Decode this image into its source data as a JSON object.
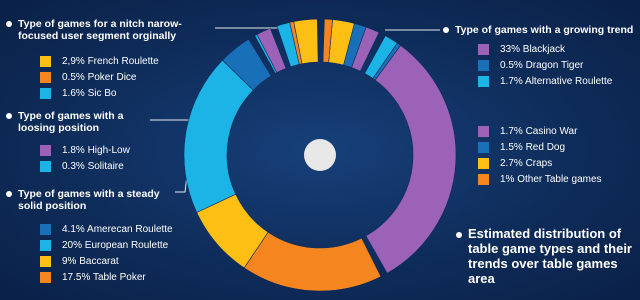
{
  "chart_data": {
    "type": "pie",
    "donut": true,
    "title": "Estimated distribution of table game types and their trends over table games area",
    "groups": [
      {
        "title": "Type of games for a nitch narow-focused user segment orginally",
        "categories": [
          "2,9% French Roulette",
          "0.5% Poker Dice",
          "1.6% Sic Bo"
        ],
        "values": [
          2.9,
          0.5,
          1.6
        ],
        "colors": [
          "#fdbf14",
          "#f5861f",
          "#1cb4e6"
        ]
      },
      {
        "title": "Type of games with a loosing position",
        "categories": [
          "1.8% High-Low",
          "0.3% Solitaire"
        ],
        "values": [
          1.8,
          0.3
        ],
        "colors": [
          "#9b62b8",
          "#1cb4e6"
        ]
      },
      {
        "title": "Type of games with a steady solid position",
        "categories": [
          "4.1% Amerecan Roulette",
          "20% European Roulette",
          "9% Baccarat",
          "17.5% Table Poker"
        ],
        "values": [
          4.1,
          20,
          9,
          17.5
        ],
        "colors": [
          "#1a70b8",
          "#1cb4e6",
          "#fdbf14",
          "#f5861f"
        ]
      },
      {
        "title": "Type of games with a growing trend",
        "categories": [
          "33% Blackjack",
          "0.5%  Dragon Tiger",
          "1.7% Alternative Roulette"
        ],
        "values": [
          33,
          0.5,
          1.7
        ],
        "colors": [
          "#9b62b8",
          "#1a70b8",
          "#1cb4e6"
        ]
      },
      {
        "categories": [
          "1.7% Casino War",
          "1.5% Red Dog",
          "2.7% Craps",
          "1% Other Table games"
        ],
        "values": [
          1.7,
          1.5,
          2.7,
          1
        ],
        "colors": [
          "#9b62b8",
          "#1a70b8",
          "#fdbf14",
          "#f5861f"
        ]
      }
    ]
  }
}
